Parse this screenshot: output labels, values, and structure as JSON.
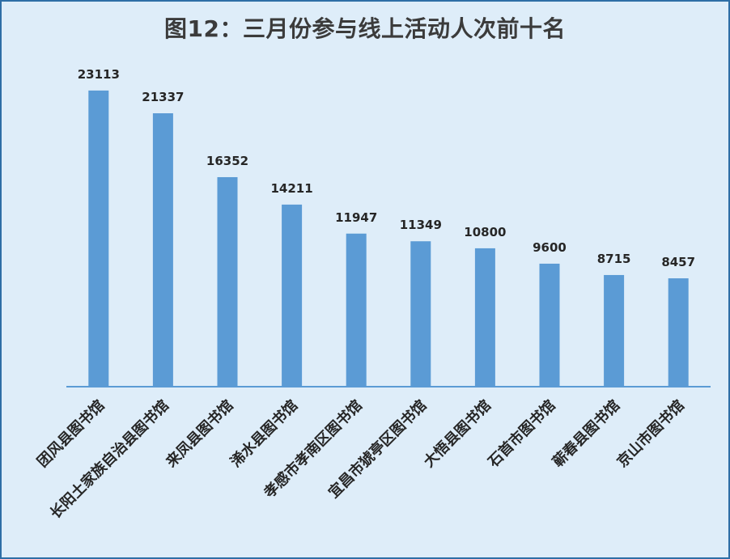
{
  "chart_data": {
    "type": "bar",
    "title": "图12：三月份参与线上活动人次前十名",
    "categories": [
      "团风县图书馆",
      "长阳土家族自治县图书馆",
      "来凤县图书馆",
      "浠水县图书馆",
      "孝感市孝南区图书馆",
      "宜昌市猇亭区图书馆",
      "大悟县图书馆",
      "石首市图书馆",
      "蕲春县图书馆",
      "京山市图书馆"
    ],
    "values": [
      23113,
      21337,
      16352,
      14211,
      11947,
      11349,
      10800,
      9600,
      8715,
      8457
    ],
    "ylim": [
      0,
      25000
    ],
    "grid": false,
    "legend": "none",
    "bar_color": "#5b9bd5",
    "axis_color": "#5b9bd5",
    "background": "#deedf9"
  }
}
